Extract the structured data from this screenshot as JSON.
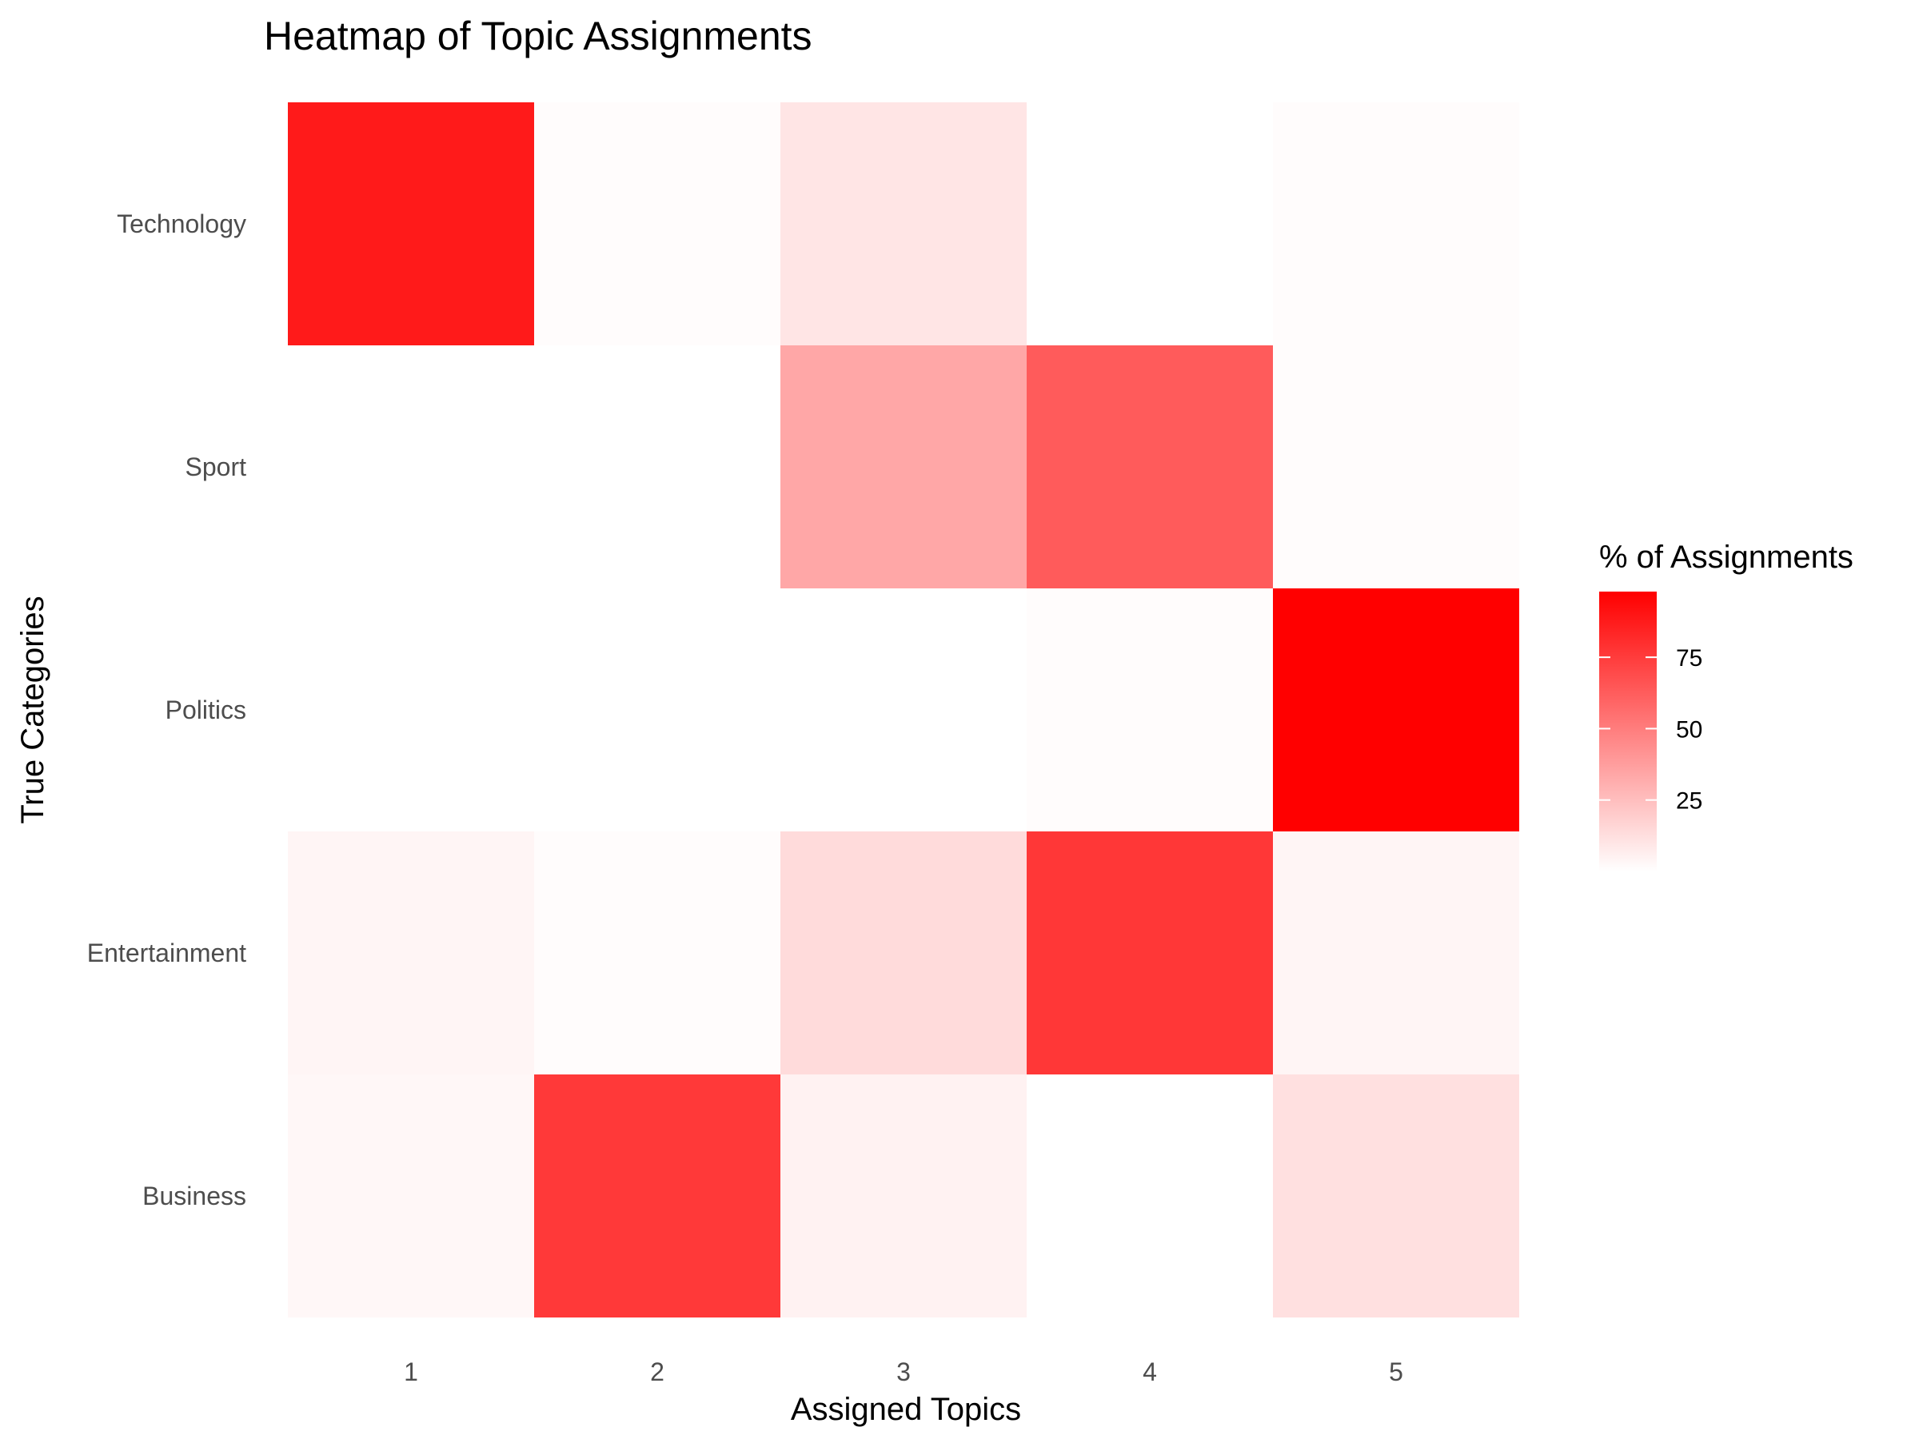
{
  "chart_data": {
    "type": "heatmap",
    "title": "Heatmap of Topic Assignments",
    "xlabel": "Assigned Topics",
    "ylabel": "True Categories",
    "x": [
      "1",
      "2",
      "3",
      "4",
      "5"
    ],
    "y": [
      "Business",
      "Entertainment",
      "Politics",
      "Sport",
      "Technology"
    ],
    "values": [
      [
        3,
        76,
        5,
        0,
        12
      ],
      [
        4,
        1,
        14,
        77,
        4
      ],
      [
        0,
        0,
        0,
        1,
        98
      ],
      [
        0,
        0,
        34,
        63,
        1
      ],
      [
        88,
        1,
        10,
        0,
        1
      ]
    ],
    "legend": {
      "title": "% of Assignments",
      "ticks": [
        "25",
        "50",
        "75"
      ],
      "placement": "right",
      "low_color": "#ffffff",
      "high_color": "#ff0000",
      "range": [
        0,
        98
      ]
    },
    "grid": false
  }
}
